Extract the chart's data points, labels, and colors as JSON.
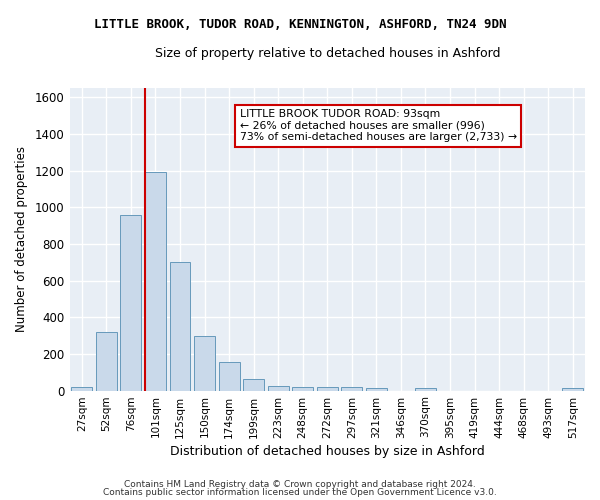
{
  "title1": "LITTLE BROOK, TUDOR ROAD, KENNINGTON, ASHFORD, TN24 9DN",
  "title2": "Size of property relative to detached houses in Ashford",
  "xlabel": "Distribution of detached houses by size in Ashford",
  "ylabel": "Number of detached properties",
  "footer1": "Contains HM Land Registry data © Crown copyright and database right 2024.",
  "footer2": "Contains public sector information licensed under the Open Government Licence v3.0.",
  "bar_color": "#c9d9ea",
  "bar_edge_color": "#6699bb",
  "categories": [
    "27sqm",
    "52sqm",
    "76sqm",
    "101sqm",
    "125sqm",
    "150sqm",
    "174sqm",
    "199sqm",
    "223sqm",
    "248sqm",
    "272sqm",
    "297sqm",
    "321sqm",
    "346sqm",
    "370sqm",
    "395sqm",
    "419sqm",
    "444sqm",
    "468sqm",
    "493sqm",
    "517sqm"
  ],
  "values": [
    20,
    320,
    960,
    1190,
    700,
    300,
    155,
    65,
    25,
    20,
    20,
    20,
    15,
    0,
    15,
    0,
    0,
    0,
    0,
    0,
    15
  ],
  "red_line_bin": 3,
  "annotation_line1": "LITTLE BROOK TUDOR ROAD: 93sqm",
  "annotation_line2": "← 26% of detached houses are smaller (996)",
  "annotation_line3": "73% of semi-detached houses are larger (2,733) →",
  "annotation_box_color": "#ffffff",
  "annotation_border_color": "#cc0000",
  "ylim": [
    0,
    1650
  ],
  "yticks": [
    0,
    200,
    400,
    600,
    800,
    1000,
    1200,
    1400,
    1600
  ],
  "figure_bg": "#ffffff",
  "axes_bg": "#e8eef5",
  "grid_color": "#ffffff",
  "red_line_color": "#cc0000",
  "title1_fontsize": 9,
  "title2_fontsize": 9,
  "bar_width": 0.85
}
